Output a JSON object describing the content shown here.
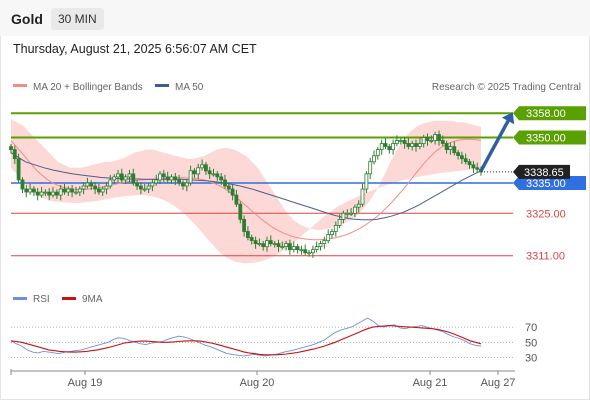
{
  "header": {
    "symbol": "Gold",
    "timeframe": "30 MIN"
  },
  "timestamp": "Thursday, August 21, 2025 6:56:07 AM CET",
  "legend": {
    "ma20_bb": "MA 20 + Bollinger Bands",
    "ma50": "MA 50",
    "credit": "Research © 2025 Trading Central"
  },
  "rsi_legend": {
    "rsi": "RSI",
    "ma9": "9MA"
  },
  "colors": {
    "resistance": "#5aa000",
    "support": "#2f6fe0",
    "target": "#dd4444",
    "ma50": "#4a5f8e",
    "ma20": "#f28c86",
    "band": "#fcd9d6",
    "candle": "#2f7d32",
    "rsi": "#6f8fdc",
    "rsi_ma": "#cc1111",
    "arrow": "#2f5f9f"
  },
  "chart_data": [
    {
      "type": "candlestick",
      "title": "Gold",
      "timeframe": "30 MIN",
      "x_ticks": [
        "Aug 19",
        "Aug 20",
        "Aug 21",
        "Aug 27"
      ],
      "ylim": [
        3303,
        3365
      ],
      "last_price": "3338.65",
      "levels": [
        {
          "label": "3358.00",
          "value": 3358,
          "kind": "resistance",
          "color": "#5aa000",
          "filled": true
        },
        {
          "label": "3350.00",
          "value": 3350,
          "kind": "resistance",
          "color": "#5aa000",
          "filled": true
        },
        {
          "label": "3335.00",
          "value": 3335,
          "kind": "pivot",
          "color": "#2f6fe0",
          "filled": true
        },
        {
          "label": "3325.00",
          "value": 3325,
          "kind": "support",
          "color": "#dd4444",
          "filled": false
        },
        {
          "label": "3311.00",
          "value": 3311,
          "kind": "support",
          "color": "#dd4444",
          "filled": false
        }
      ],
      "price": [
        3346,
        3343,
        3336,
        3333,
        3332,
        3333,
        3332,
        3331,
        3332,
        3332,
        3331,
        3332,
        3331,
        3333,
        3332,
        3333,
        3332,
        3332,
        3333,
        3334,
        3335,
        3334,
        3333,
        3332,
        3333,
        3334,
        3336,
        3337,
        3338,
        3336,
        3337,
        3338,
        3335,
        3334,
        3333,
        3333,
        3334,
        3335,
        3336,
        3338,
        3337,
        3336,
        3337,
        3336,
        3335,
        3334,
        3335,
        3339,
        3338,
        3340,
        3341,
        3339,
        3338,
        3338,
        3337,
        3336,
        3334,
        3333,
        3331,
        3328,
        3323,
        3319,
        3317,
        3316,
        3315,
        3315,
        3314,
        3316,
        3315,
        3315,
        3314,
        3314,
        3315,
        3313,
        3314,
        3313,
        3313,
        3312,
        3312,
        3313,
        3314,
        3315,
        3316,
        3318,
        3319,
        3321,
        3323,
        3325,
        3325,
        3325,
        3327,
        3328,
        3333,
        3338,
        3342,
        3344,
        3346,
        3348,
        3347,
        3346,
        3348,
        3349,
        3349,
        3348,
        3347,
        3348,
        3347,
        3348,
        3350,
        3349,
        3349,
        3351,
        3349,
        3348,
        3346,
        3347,
        3345,
        3344,
        3343,
        3342,
        3341,
        3340,
        3339.5,
        3338.65
      ],
      "ma50": [
        3345,
        3344,
        3343,
        3342,
        3341.5,
        3341,
        3340.5,
        3340,
        3339.6,
        3339.2,
        3338.9,
        3338.6,
        3338.3,
        3338,
        3337.8,
        3337.6,
        3337.4,
        3337.2,
        3337,
        3336.8,
        3336.7,
        3336.6,
        3336.5,
        3336.4,
        3336.4,
        3336.3,
        3336.3,
        3336.3,
        3336.2,
        3336.2,
        3336.2,
        3336.2,
        3336.2,
        3336.2,
        3336.2,
        3336.2,
        3336.2,
        3336.1,
        3336,
        3335.9,
        3335.8,
        3335.7,
        3335.6,
        3335.4,
        3335.2,
        3335,
        3334.7,
        3334.4,
        3334.1,
        3333.7,
        3333.3,
        3332.9,
        3332.4,
        3331.9,
        3331.4,
        3330.9,
        3330.4,
        3329.9,
        3329.4,
        3328.9,
        3328.4,
        3327.9,
        3327.4,
        3326.9,
        3326.4,
        3325.9,
        3325.4,
        3324.9,
        3324.4,
        3324,
        3323.6,
        3323.3,
        3323.1,
        3323,
        3322.9,
        3322.9,
        3322.9,
        3323,
        3323.3,
        3323.6,
        3324,
        3324.5,
        3325,
        3325.6,
        3326.3,
        3327,
        3327.8,
        3328.7,
        3329.6,
        3330.5,
        3331.4,
        3332.3,
        3333.2,
        3334.1,
        3335,
        3335.9,
        3336.7,
        3337.5,
        3338.3,
        3339
      ],
      "ma20": [
        3349,
        3347,
        3345,
        3343,
        3341,
        3339,
        3337.5,
        3336,
        3335,
        3334.2,
        3333.6,
        3333.2,
        3332.9,
        3332.8,
        3332.8,
        3333,
        3333.2,
        3333.5,
        3333.8,
        3334.2,
        3334.6,
        3335,
        3335.3,
        3335.6,
        3335.8,
        3336,
        3336.1,
        3336.2,
        3336.3,
        3336.4,
        3336.5,
        3336.6,
        3336.7,
        3336.7,
        3336.6,
        3336.5,
        3336.3,
        3336,
        3335.5,
        3334.8,
        3334,
        3333,
        3331.8,
        3330.5,
        3329,
        3327.5,
        3326,
        3324.5,
        3323,
        3321.7,
        3320.5,
        3319.5,
        3318.6,
        3317.9,
        3317.3,
        3316.9,
        3316.6,
        3316.4,
        3316.3,
        3316.3,
        3316.4,
        3316.6,
        3316.9,
        3317.3,
        3317.8,
        3318.5,
        3319.3,
        3320.2,
        3321.3,
        3322.5,
        3323.8,
        3325.3,
        3327,
        3328.8,
        3330.7,
        3332.7,
        3334.8,
        3337,
        3339.2,
        3341.3,
        3343.2,
        3344.9,
        3346.3,
        3347.4,
        3348.2,
        3348.8,
        3349.2,
        3349.4,
        3349.4,
        3349.3,
        3349
      ],
      "band_upper": [
        3356,
        3355,
        3354,
        3352,
        3350,
        3348,
        3346,
        3344,
        3342,
        3341,
        3340,
        3340,
        3340,
        3340.5,
        3341,
        3341.5,
        3342,
        3342,
        3342.5,
        3343,
        3344,
        3345,
        3345.5,
        3346,
        3346,
        3345.5,
        3345,
        3344.5,
        3344,
        3343.5,
        3343,
        3343,
        3343.5,
        3344,
        3345,
        3346,
        3346.5,
        3346.5,
        3346,
        3345,
        3344,
        3342,
        3340,
        3337,
        3334,
        3331,
        3328,
        3325,
        3323,
        3321.5,
        3320.5,
        3320,
        3319.5,
        3319.5,
        3320,
        3320.5,
        3321,
        3322,
        3323,
        3324.5,
        3326.5,
        3329,
        3332,
        3335.5,
        3339.5,
        3343.5,
        3347,
        3350,
        3352,
        3353.5,
        3354.5,
        3355,
        3355.5,
        3355.5,
        3355.5,
        3355.5,
        3355,
        3355,
        3354.5,
        3354,
        3353.5
      ],
      "band_lower": [
        3340,
        3338,
        3336,
        3334,
        3332,
        3331,
        3330,
        3329.5,
        3329,
        3328.8,
        3328.6,
        3328.5,
        3328.4,
        3328.5,
        3328.6,
        3328.8,
        3329,
        3329.3,
        3329.6,
        3330,
        3330.3,
        3330.5,
        3330.7,
        3330.9,
        3331,
        3331,
        3330.8,
        3330.5,
        3330,
        3329.3,
        3328.5,
        3327.3,
        3326,
        3324.5,
        3322.8,
        3321,
        3319,
        3317,
        3315,
        3313,
        3311.5,
        3310.2,
        3309.3,
        3308.8,
        3308.5,
        3308.5,
        3308.7,
        3309,
        3309.5,
        3310.2,
        3311,
        3312,
        3313.2,
        3314.5,
        3316,
        3317.5,
        3319,
        3320.5,
        3322,
        3323.5,
        3325,
        3326.2,
        3327.3,
        3328.3,
        3329.2,
        3330,
        3330.8,
        3331.6,
        3332.3,
        3333,
        3333.6,
        3334.2,
        3334.8,
        3335.3,
        3335.8,
        3336.2,
        3336.6,
        3337,
        3337.3,
        3337.6,
        3337.9,
        3338.2,
        3338.4,
        3338.6,
        3338.8,
        3339,
        3339.2,
        3339.4,
        3339.5,
        3339.6
      ]
    },
    {
      "type": "line",
      "title": "RSI",
      "y_ticks": [
        70,
        50,
        30
      ],
      "ylim": [
        20,
        90
      ],
      "series": [
        {
          "name": "RSI",
          "values": [
            52,
            48,
            45,
            40,
            37,
            36,
            38,
            37,
            36,
            35,
            37,
            38,
            39,
            40,
            42,
            44,
            46,
            48,
            50,
            54,
            56,
            55,
            52,
            50,
            48,
            47,
            49,
            50,
            51,
            54,
            56,
            58,
            57,
            55,
            52,
            49,
            46,
            44,
            41,
            38,
            35,
            34,
            33,
            32,
            33,
            34,
            33,
            32,
            33,
            34,
            36,
            38,
            39,
            41,
            43,
            45,
            47,
            50,
            53,
            58,
            63,
            66,
            68,
            70,
            74,
            78,
            82,
            78,
            72,
            70,
            72,
            73,
            69,
            68,
            70,
            71,
            72,
            70,
            68,
            66,
            64,
            60,
            57,
            55,
            52,
            48,
            46,
            45
          ]
        },
        {
          "name": "9MA",
          "values": [
            52,
            51,
            50,
            48,
            46,
            44,
            42,
            40,
            39,
            38,
            37.5,
            37,
            37,
            37.5,
            38,
            39,
            40,
            41.5,
            43,
            45,
            47,
            49,
            50,
            51,
            51.5,
            51.5,
            51,
            50.5,
            50,
            50,
            50.5,
            51,
            51.5,
            52,
            52,
            51.5,
            50.5,
            49,
            47.5,
            45.5,
            43.5,
            41.5,
            39.5,
            37.5,
            36,
            35,
            34,
            33.5,
            33.5,
            33.5,
            34,
            34.5,
            35.5,
            36.5,
            38,
            39.5,
            41,
            43,
            45,
            47.5,
            50,
            53,
            56,
            59,
            62,
            65,
            68,
            70,
            71,
            71.5,
            72,
            71.5,
            71,
            70.5,
            70,
            69.5,
            69,
            68.5,
            68,
            67,
            65.5,
            63.5,
            61,
            58,
            55,
            52,
            50,
            48
          ]
        }
      ]
    }
  ]
}
